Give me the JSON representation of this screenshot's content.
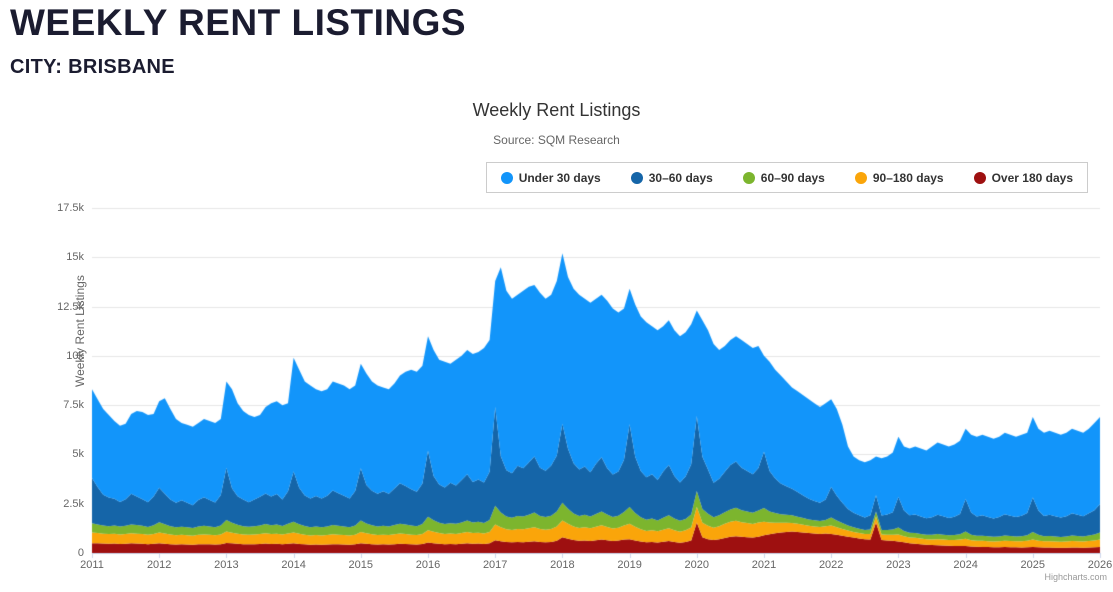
{
  "header": {
    "title": "WEEKLY RENT LISTINGS",
    "subtitle": "CITY: BRISBANE"
  },
  "chart_data": {
    "type": "area",
    "stacking": "normal",
    "title": "Weekly Rent Listings",
    "subtitle": "Source: SQM Research",
    "ylabel": "Weekly Rent Listings",
    "xlabel": "",
    "credits": "Highcharts.com",
    "grid": "horizontal",
    "legend_position": "top-right",
    "ylim": [
      0,
      17500
    ],
    "y_ticks": [
      {
        "value": 0,
        "label": "0"
      },
      {
        "value": 2500,
        "label": "2.5k"
      },
      {
        "value": 5000,
        "label": "5k"
      },
      {
        "value": 7500,
        "label": "7.5k"
      },
      {
        "value": 10000,
        "label": "10k"
      },
      {
        "value": 12500,
        "label": "12.5k"
      },
      {
        "value": 15000,
        "label": "15k"
      },
      {
        "value": 17500,
        "label": "17.5k"
      }
    ],
    "x_tick_labels": [
      "2011",
      "2012",
      "2013",
      "2014",
      "2015",
      "2016",
      "2017",
      "2018",
      "2019",
      "2020",
      "2021",
      "2022",
      "2023",
      "2024",
      "2025",
      "2026"
    ],
    "x_start_year": 2011,
    "x_step_months": 1,
    "points": 181,
    "series_note": "values are estimated monthly weekly-rent-listing counts, Jan 2011 through Jan 2026; series listed bottom of stack first; legend shows reverse order",
    "series": [
      {
        "name": "Over 180 days",
        "color": "#9E1010",
        "values": [
          500,
          490,
          480,
          470,
          480,
          460,
          470,
          490,
          480,
          470,
          450,
          470,
          490,
          470,
          450,
          430,
          440,
          430,
          420,
          440,
          450,
          440,
          430,
          450,
          510,
          490,
          470,
          450,
          440,
          450,
          460,
          480,
          460,
          470,
          450,
          470,
          490,
          460,
          440,
          420,
          430,
          420,
          430,
          450,
          440,
          430,
          420,
          440,
          500,
          470,
          450,
          430,
          440,
          430,
          450,
          470,
          460,
          440,
          430,
          460,
          530,
          500,
          470,
          450,
          460,
          450,
          470,
          500,
          470,
          480,
          460,
          500,
          650,
          600,
          560,
          540,
          560,
          550,
          570,
          600,
          560,
          540,
          560,
          620,
          800,
          720,
          660,
          620,
          640,
          610,
          650,
          690,
          650,
          610,
          630,
          680,
          700,
          640,
          580,
          540,
          560,
          530,
          570,
          610,
          560,
          520,
          560,
          640,
          1550,
          800,
          700,
          660,
          700,
          760,
          820,
          850,
          820,
          800,
          780,
          830,
          900,
          950,
          1000,
          1040,
          1070,
          1090,
          1070,
          1040,
          1010,
          990,
          970,
          990,
          960,
          930,
          880,
          830,
          780,
          740,
          700,
          680,
          1550,
          660,
          640,
          620,
          580,
          540,
          500,
          470,
          440,
          420,
          400,
          390,
          380,
          370,
          360,
          360,
          350,
          330,
          320,
          310,
          300,
          290,
          290,
          300,
          295,
          290,
          285,
          290,
          300,
          290,
          280,
          275,
          270,
          265,
          270,
          280,
          275,
          270,
          280,
          290,
          300
        ]
      },
      {
        "name": "90–180 days",
        "color": "#FAA50A",
        "values": [
          540,
          520,
          500,
          490,
          500,
          480,
          490,
          510,
          500,
          490,
          470,
          500,
          550,
          520,
          490,
          470,
          480,
          470,
          460,
          480,
          490,
          480,
          470,
          490,
          580,
          540,
          510,
          490,
          480,
          490,
          500,
          520,
          500,
          510,
          490,
          520,
          550,
          520,
          490,
          470,
          480,
          470,
          480,
          500,
          490,
          480,
          470,
          490,
          570,
          530,
          500,
          480,
          490,
          480,
          500,
          520,
          510,
          490,
          480,
          510,
          630,
          580,
          540,
          520,
          530,
          520,
          540,
          570,
          540,
          550,
          530,
          570,
          800,
          710,
          650,
          630,
          660,
          650,
          680,
          710,
          660,
          640,
          660,
          720,
          850,
          760,
          690,
          650,
          670,
          640,
          680,
          720,
          670,
          630,
          650,
          710,
          780,
          690,
          620,
          580,
          600,
          570,
          610,
          650,
          600,
          560,
          590,
          650,
          800,
          740,
          680,
          620,
          660,
          720,
          760,
          780,
          740,
          720,
          690,
          720,
          680,
          600,
          540,
          490,
          460,
          430,
          410,
          390,
          370,
          360,
          350,
          370,
          430,
          380,
          340,
          310,
          290,
          270,
          260,
          280,
          300,
          280,
          290,
          310,
          360,
          310,
          290,
          300,
          290,
          280,
          290,
          310,
          300,
          290,
          300,
          320,
          370,
          320,
          300,
          310,
          300,
          290,
          300,
          320,
          310,
          300,
          310,
          330,
          380,
          330,
          310,
          320,
          310,
          300,
          310,
          330,
          320,
          310,
          330,
          350,
          390
        ]
      },
      {
        "name": "60–90 days",
        "color": "#7CB52E",
        "values": [
          470,
          440,
          420,
          400,
          420,
          400,
          420,
          450,
          440,
          420,
          400,
          440,
          520,
          470,
          420,
          400,
          410,
          400,
          390,
          420,
          440,
          420,
          410,
          450,
          580,
          500,
          450,
          420,
          410,
          420,
          440,
          470,
          450,
          460,
          430,
          490,
          540,
          480,
          440,
          420,
          430,
          420,
          440,
          470,
          450,
          440,
          420,
          470,
          580,
          500,
          460,
          440,
          450,
          440,
          470,
          500,
          480,
          460,
          450,
          500,
          680,
          580,
          520,
          500,
          520,
          510,
          540,
          580,
          540,
          550,
          530,
          600,
          950,
          750,
          640,
          620,
          660,
          650,
          690,
          740,
          660,
          640,
          670,
          760,
          900,
          760,
          650,
          610,
          630,
          600,
          650,
          700,
          630,
          590,
          610,
          690,
          850,
          700,
          610,
          570,
          590,
          550,
          610,
          660,
          590,
          550,
          580,
          660,
          800,
          690,
          610,
          530,
          550,
          590,
          630,
          660,
          610,
          590,
          570,
          610,
          700,
          560,
          490,
          440,
          410,
          390,
          360,
          340,
          320,
          310,
          300,
          320,
          410,
          340,
          300,
          260,
          240,
          220,
          210,
          230,
          250,
          230,
          240,
          260,
          350,
          270,
          240,
          250,
          240,
          230,
          240,
          260,
          250,
          240,
          250,
          270,
          370,
          280,
          250,
          260,
          250,
          240,
          250,
          270,
          260,
          250,
          260,
          280,
          390,
          300,
          260,
          270,
          260,
          250,
          260,
          280,
          270,
          260,
          280,
          300,
          350
        ]
      },
      {
        "name": "30–60 days",
        "color": "#1565A8",
        "values": [
          2300,
          1900,
          1550,
          1450,
          1350,
          1250,
          1350,
          1550,
          1450,
          1350,
          1250,
          1450,
          1750,
          1550,
          1350,
          1250,
          1350,
          1250,
          1150,
          1350,
          1450,
          1350,
          1250,
          1550,
          2650,
          1750,
          1450,
          1350,
          1250,
          1350,
          1450,
          1550,
          1450,
          1550,
          1350,
          1650,
          2550,
          1850,
          1550,
          1450,
          1550,
          1450,
          1550,
          1750,
          1650,
          1550,
          1450,
          1750,
          2650,
          1950,
          1750,
          1650,
          1750,
          1650,
          1850,
          2050,
          1950,
          1850,
          1750,
          2050,
          3350,
          2250,
          1950,
          1850,
          2050,
          1950,
          2150,
          2350,
          2050,
          2150,
          2050,
          2450,
          5000,
          2850,
          2350,
          2250,
          2550,
          2450,
          2650,
          2850,
          2450,
          2350,
          2550,
          2850,
          4000,
          3050,
          2550,
          2350,
          2450,
          2250,
          2550,
          2750,
          2350,
          2150,
          2250,
          2650,
          4200,
          2850,
          2350,
          2150,
          2250,
          2050,
          2350,
          2550,
          2150,
          1950,
          2150,
          2550,
          3800,
          2650,
          2250,
          1750,
          1850,
          2050,
          2250,
          2350,
          2150,
          2050,
          1950,
          2150,
          2850,
          2050,
          1750,
          1550,
          1450,
          1350,
          1250,
          1150,
          1050,
          980,
          930,
          1030,
          1550,
          1250,
          1030,
          830,
          730,
          680,
          630,
          730,
          830,
          730,
          780,
          880,
          1550,
          1030,
          880,
          930,
          880,
          830,
          880,
          980,
          930,
          880,
          930,
          1030,
          1650,
          1130,
          980,
          1030,
          980,
          930,
          980,
          1080,
          1030,
          980,
          1030,
          1130,
          1750,
          1230,
          1030,
          1080,
          1030,
          980,
          1030,
          1130,
          1080,
          1030,
          1130,
          1230,
          1450
        ]
      },
      {
        "name": "Under 30 days",
        "color": "#1295FA",
        "values": [
          4490,
          4450,
          4350,
          4190,
          3950,
          3860,
          3820,
          4050,
          4330,
          4420,
          4430,
          4190,
          4390,
          4840,
          4590,
          4250,
          3920,
          3950,
          3980,
          3910,
          3970,
          4010,
          4040,
          3860,
          4380,
          5020,
          4720,
          4490,
          4420,
          4190,
          4150,
          4380,
          4740,
          4710,
          4780,
          4470,
          5770,
          5990,
          5780,
          5740,
          5410,
          5440,
          5400,
          5530,
          5570,
          5600,
          5540,
          5350,
          5300,
          5650,
          5540,
          5500,
          5270,
          5300,
          5330,
          5460,
          5800,
          6060,
          6090,
          5980,
          5810,
          6390,
          6320,
          6380,
          6040,
          6370,
          6300,
          6300,
          6500,
          6470,
          6830,
          6680,
          6400,
          9590,
          9100,
          8860,
          8670,
          9000,
          8910,
          8700,
          8870,
          8730,
          8660,
          8850,
          8650,
          8710,
          8850,
          8870,
          8510,
          8600,
          8370,
          8240,
          8500,
          8420,
          8060,
          7670,
          6870,
          7720,
          7840,
          7860,
          7500,
          7600,
          7360,
          7330,
          7400,
          7420,
          7320,
          7100,
          5350,
          6920,
          7060,
          7040,
          6540,
          6380,
          6340,
          6360,
          6480,
          6440,
          6410,
          6190,
          4870,
          5540,
          5520,
          5480,
          5310,
          5140,
          5110,
          5080,
          5050,
          4960,
          4850,
          4890,
          4450,
          4400,
          3950,
          3170,
          2860,
          2790,
          2800,
          2780,
          1970,
          2900,
          2950,
          3030,
          3060,
          3250,
          3390,
          3450,
          3450,
          3440,
          3590,
          3660,
          3640,
          3620,
          3660,
          3720,
          3560,
          3940,
          4050,
          4090,
          4070,
          4050,
          4080,
          4130,
          4105,
          4080,
          4115,
          4070,
          4080,
          4150,
          4220,
          4255,
          4230,
          4205,
          4230,
          4280,
          4255,
          4230,
          4280,
          4430,
          4410
        ]
      }
    ]
  },
  "style": {
    "grid_color": "#E6E6E6",
    "axis_color": "#CCD6EB",
    "label_color": "#666666",
    "title_color": "#333333"
  }
}
